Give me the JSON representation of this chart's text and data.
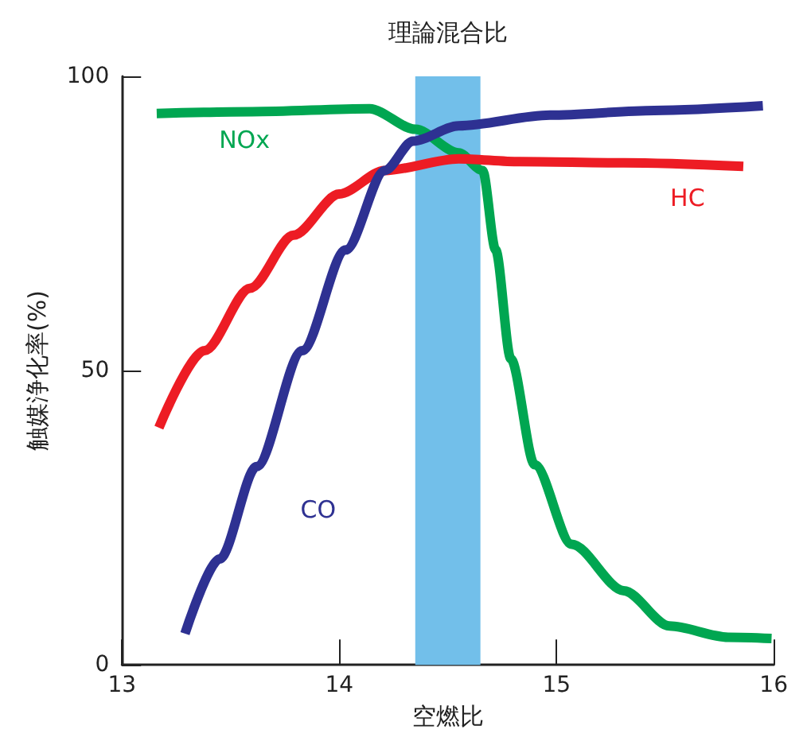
{
  "chart_data": {
    "type": "line",
    "xlabel": "空燃比",
    "ylabel": "触媒浄化率(%)",
    "xlim": [
      13,
      16
    ],
    "xticks": [
      13,
      14,
      15,
      16
    ],
    "ylim": [
      0,
      100
    ],
    "yticks": [
      0,
      50,
      100
    ],
    "grid": false,
    "legend": false,
    "marker": "none",
    "line_style": "solid",
    "bands": [
      {
        "axis": "x",
        "from": 14.35,
        "to": 14.65,
        "label": "理論混合比",
        "color": "#72bfea"
      }
    ],
    "series": [
      {
        "name": "NOx",
        "color": "#00a651",
        "x": [
          13.16,
          13.6,
          14.14,
          14.35,
          14.55,
          14.66,
          14.72,
          14.79,
          14.9,
          15.07,
          15.31,
          15.52,
          15.79,
          15.99
        ],
        "values": [
          93.7,
          94,
          94.5,
          91,
          87,
          84,
          70.5,
          52,
          34,
          20.5,
          12.6,
          6.6,
          4.7,
          4.5
        ]
      },
      {
        "name": "HC",
        "color": "#ed1c24",
        "x": [
          13.17,
          13.38,
          13.59,
          13.79,
          14.0,
          14.21,
          14.55,
          14.83,
          15.31,
          15.86
        ],
        "values": [
          40.3,
          53.4,
          64,
          73,
          80,
          84,
          86,
          85.5,
          85.3,
          84.7
        ]
      },
      {
        "name": "CO",
        "color": "#2e3192",
        "x": [
          13.29,
          13.45,
          13.62,
          13.83,
          14.03,
          14.21,
          14.34,
          14.55,
          14.97,
          15.45,
          15.95
        ],
        "values": [
          5.3,
          18,
          33.7,
          53.4,
          70.5,
          84,
          89,
          91.6,
          93.4,
          94.2,
          95
        ]
      }
    ]
  }
}
